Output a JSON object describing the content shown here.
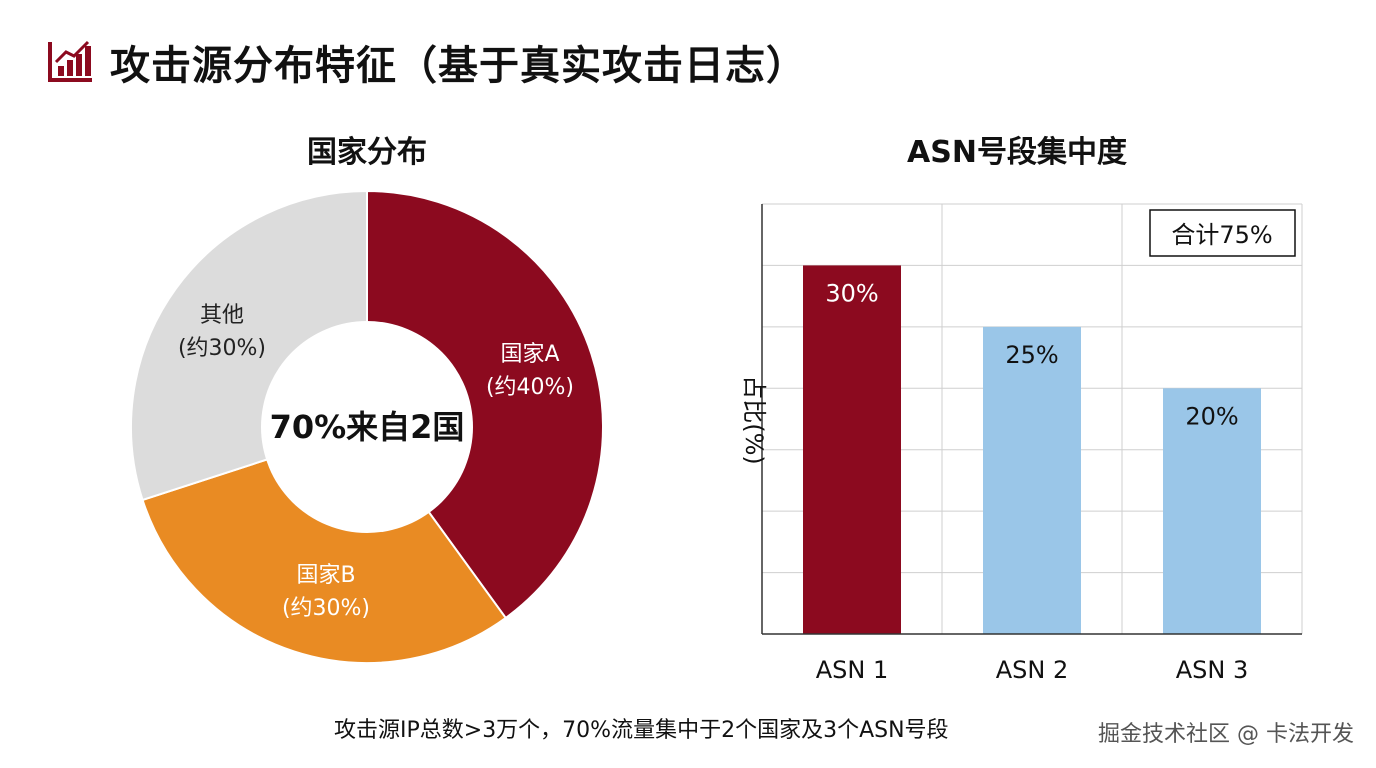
{
  "page": {
    "title": "攻击源分布特征（基于真实攻击日志）",
    "footnote": "攻击源IP总数>3万个，70%流量集中于2个国家及3个ASN号段",
    "watermark": "掘金技术社区 @ 卡法开发",
    "accent_color": "#8c0a1f",
    "title_icon": "bar-chart-trend-icon"
  },
  "chart_data": [
    {
      "type": "pie",
      "title": "国家分布",
      "center_label": "70%来自2国",
      "slices": [
        {
          "name": "国家A",
          "label": "(约40%)",
          "value": 40,
          "color": "#8c0a1f"
        },
        {
          "name": "国家B",
          "label": "(约30%)",
          "value": 30,
          "color": "#e98b23"
        },
        {
          "name": "其他",
          "label": "(约30%)",
          "value": 30,
          "color": "#dcdcdc"
        }
      ]
    },
    {
      "type": "bar",
      "title": "ASN号段集中度",
      "ylabel": "占比(%)",
      "categories": [
        "ASN 1",
        "ASN 2",
        "ASN 3"
      ],
      "values": [
        30,
        25,
        20
      ],
      "labels": [
        "30%",
        "25%",
        "20%"
      ],
      "colors": [
        "#8c0a1f",
        "#9ac6e8",
        "#9ac6e8"
      ],
      "ylim": [
        0,
        35
      ],
      "grid": true,
      "annotation": "合计75%"
    }
  ]
}
